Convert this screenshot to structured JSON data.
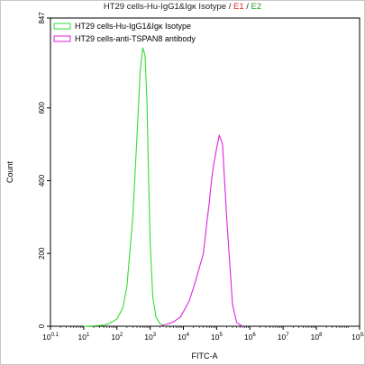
{
  "chart_data": {
    "type": "line",
    "title": {
      "text": "HT29 cells-Hu-IgG1&Igκ Isotype / ",
      "gate1": "E1",
      "separator": " / ",
      "gate2": "E2"
    },
    "xlabel": "FITC-A",
    "ylabel": "Count",
    "x_scale": "log",
    "xlim": [
      1,
      2000000000
    ],
    "ylim": [
      0,
      847
    ],
    "x_ticks": [
      {
        "value": 1,
        "base": "10",
        "exp": "0.1"
      },
      {
        "value": 10,
        "base": "10",
        "exp": "1"
      },
      {
        "value": 100,
        "base": "10",
        "exp": "2"
      },
      {
        "value": 1000,
        "base": "10",
        "exp": "3"
      },
      {
        "value": 10000,
        "base": "10",
        "exp": "4"
      },
      {
        "value": 100000,
        "base": "10",
        "exp": "5"
      },
      {
        "value": 1000000,
        "base": "10",
        "exp": "6"
      },
      {
        "value": 10000000,
        "base": "10",
        "exp": "7"
      },
      {
        "value": 100000000,
        "base": "10",
        "exp": "8"
      },
      {
        "value": 2000000000,
        "base": "10",
        "exp": "9.3"
      }
    ],
    "y_ticks": [
      0,
      200,
      400,
      600,
      847
    ],
    "legend_position": "top-left",
    "series": [
      {
        "name": "HT29 cells-Hu-IgG1&Igκ Isotype",
        "color": "#33dd33",
        "x": [
          10,
          20,
          40,
          60,
          100,
          150,
          200,
          300,
          400,
          500,
          600,
          700,
          800,
          900,
          1000,
          1200,
          1500,
          2000,
          3000
        ],
        "y": [
          0,
          1,
          3,
          8,
          20,
          50,
          110,
          300,
          520,
          700,
          765,
          745,
          620,
          400,
          230,
          80,
          25,
          6,
          0
        ]
      },
      {
        "name": "HT29 cells-anti-TSPAN8 antibody",
        "color": "#dd22dd",
        "x": [
          2000,
          3000,
          5000,
          8000,
          10000,
          15000,
          20000,
          30000,
          40000,
          50000,
          60000,
          70000,
          80000,
          100000,
          120000,
          150000,
          200000,
          300000,
          400000,
          600000
        ],
        "y": [
          0,
          5,
          12,
          25,
          40,
          70,
          105,
          160,
          200,
          280,
          340,
          400,
          440,
          490,
          525,
          500,
          300,
          60,
          10,
          0
        ]
      }
    ]
  }
}
